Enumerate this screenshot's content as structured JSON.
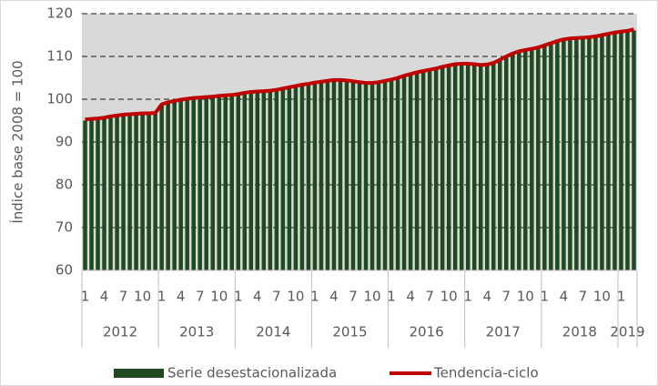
{
  "chart_data": {
    "type": "bar_line",
    "ylabel": "Índice base 2008 = 100",
    "categories": [
      "1",
      null,
      null,
      "4",
      null,
      null,
      "7",
      null,
      null,
      "10",
      null,
      null,
      "1",
      null,
      null,
      "4",
      null,
      null,
      "7",
      null,
      null,
      "10",
      null,
      null,
      "1",
      null,
      null,
      "4",
      null,
      null,
      "7",
      null,
      null,
      "10",
      null,
      null,
      "1",
      null,
      null,
      "4",
      null,
      null,
      "7",
      null,
      null,
      "10",
      null,
      null,
      "1",
      null,
      null,
      "4",
      null,
      null,
      "7",
      null,
      null,
      "10",
      null,
      null,
      "1",
      null,
      null,
      "4",
      null,
      null,
      "7",
      null,
      null,
      "10",
      null,
      null,
      "1",
      null,
      null,
      "4",
      null,
      null,
      "7",
      null,
      null,
      "10",
      null,
      null,
      "1",
      null,
      null
    ],
    "years": [
      "2012",
      "2013",
      "2014",
      "2015",
      "2016",
      "2017",
      "2018",
      "2019"
    ],
    "series": [
      {
        "name": "Serie desestacionalizada",
        "color": "#1f4a1f",
        "values": [
          95.0,
          95.2,
          95.3,
          95.6,
          95.9,
          96.1,
          96.3,
          96.4,
          96.5,
          96.5,
          96.6,
          96.6,
          98.6,
          99.0,
          99.4,
          99.7,
          99.9,
          100.1,
          100.2,
          100.3,
          100.4,
          100.6,
          100.7,
          100.8,
          101.0,
          101.3,
          101.5,
          101.6,
          101.7,
          101.8,
          102.0,
          102.3,
          102.6,
          102.9,
          103.2,
          103.4,
          103.7,
          103.9,
          104.1,
          104.3,
          104.3,
          104.2,
          104.0,
          103.8,
          103.6,
          103.6,
          103.8,
          104.1,
          104.4,
          104.8,
          105.3,
          105.7,
          106.1,
          106.4,
          106.7,
          107.0,
          107.4,
          107.7,
          108.0,
          108.1,
          108.1,
          108.0,
          107.8,
          107.9,
          108.3,
          109.0,
          109.8,
          110.5,
          111.0,
          111.3,
          111.6,
          111.9,
          112.4,
          112.9,
          113.4,
          113.8,
          114.0,
          114.1,
          114.2,
          114.3,
          114.5,
          114.8,
          115.1,
          115.4,
          115.6,
          115.8,
          116.1
        ]
      },
      {
        "name": "Tendencia-ciclo",
        "color": "#c00000",
        "values": [
          95.3,
          95.4,
          95.5,
          95.7,
          96.0,
          96.2,
          96.4,
          96.5,
          96.6,
          96.7,
          96.7,
          96.8,
          98.8,
          99.3,
          99.6,
          99.9,
          100.1,
          100.3,
          100.4,
          100.5,
          100.6,
          100.8,
          100.9,
          101.0,
          101.2,
          101.5,
          101.7,
          101.8,
          101.9,
          102.0,
          102.2,
          102.5,
          102.8,
          103.1,
          103.4,
          103.6,
          103.9,
          104.1,
          104.3,
          104.5,
          104.5,
          104.4,
          104.2,
          104.0,
          103.8,
          103.8,
          104.0,
          104.3,
          104.6,
          105.0,
          105.5,
          105.9,
          106.3,
          106.6,
          106.9,
          107.2,
          107.6,
          107.9,
          108.2,
          108.3,
          108.3,
          108.2,
          108.0,
          108.1,
          108.5,
          109.2,
          110.0,
          110.7,
          111.2,
          111.5,
          111.8,
          112.1,
          112.6,
          113.1,
          113.6,
          114.0,
          114.2,
          114.3,
          114.4,
          114.5,
          114.7,
          115.0,
          115.3,
          115.6,
          115.8,
          116.0,
          116.3
        ]
      }
    ],
    "ylim": [
      60,
      120
    ],
    "yticks": [
      60,
      70,
      80,
      90,
      100,
      110,
      120
    ],
    "grid": true,
    "legend": "bottom"
  }
}
